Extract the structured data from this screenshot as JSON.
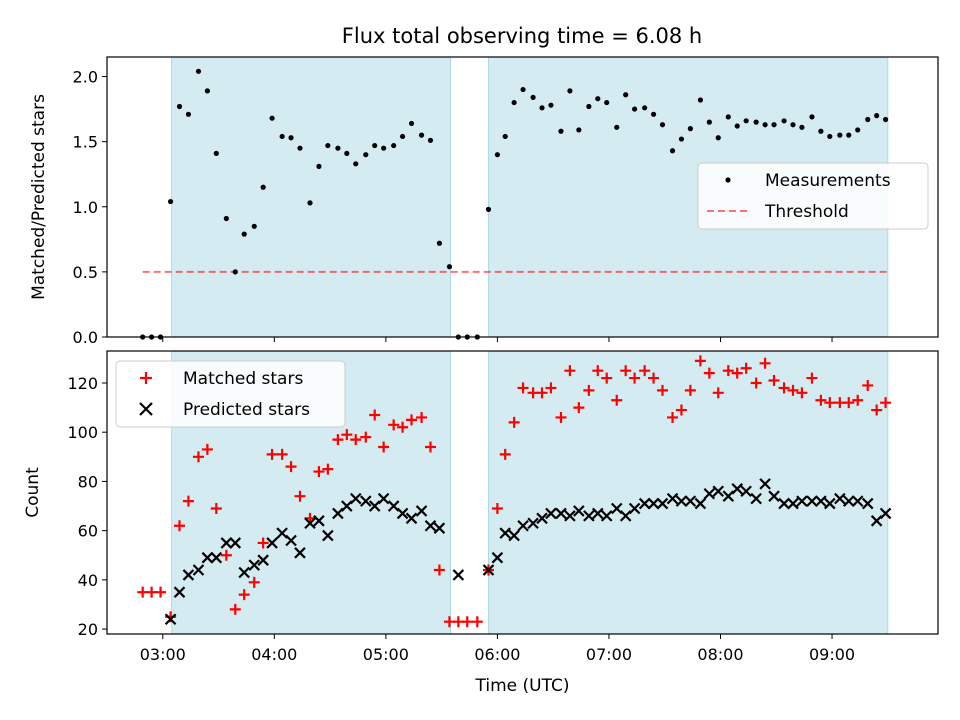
{
  "title": "Flux total observing time = 6.08 h",
  "colors": {
    "shade": "#add8e6",
    "threshold": "#ff0000",
    "matched": "#ff0000",
    "predicted": "#000000",
    "measurement": "#000000"
  },
  "chart_data": [
    {
      "type": "scatter",
      "ylabel": "Matched/Predicted stars",
      "xlim": [
        2.5,
        9.95
      ],
      "ylim": [
        0,
        2.15
      ],
      "yticks": [
        0.0,
        0.5,
        1.0,
        1.5,
        2.0
      ],
      "ytick_labels": [
        "0.0",
        "0.5",
        "1.0",
        "1.5",
        "2.0"
      ],
      "observing_spans": [
        [
          3.08,
          5.58
        ],
        [
          5.92,
          9.5
        ]
      ],
      "threshold": {
        "name": "Threshold",
        "y": 0.5,
        "x_range": [
          2.82,
          9.5
        ]
      },
      "legend": {
        "position": "right",
        "entries": [
          "Measurements",
          "Threshold"
        ]
      },
      "series": [
        {
          "name": "Measurements",
          "marker": "dot",
          "x": [
            2.82,
            2.9,
            2.98,
            3.07,
            3.15,
            3.23,
            3.32,
            3.4,
            3.48,
            3.57,
            3.65,
            3.73,
            3.82,
            3.9,
            3.98,
            4.07,
            4.15,
            4.23,
            4.32,
            4.4,
            4.48,
            4.57,
            4.65,
            4.73,
            4.82,
            4.9,
            4.98,
            5.07,
            5.15,
            5.23,
            5.32,
            5.4,
            5.48,
            5.57,
            5.65,
            5.73,
            5.82,
            5.92,
            6.0,
            6.07,
            6.15,
            6.23,
            6.32,
            6.4,
            6.48,
            6.57,
            6.65,
            6.73,
            6.82,
            6.9,
            6.98,
            7.07,
            7.15,
            7.23,
            7.32,
            7.4,
            7.48,
            7.57,
            7.65,
            7.73,
            7.82,
            7.9,
            7.98,
            8.07,
            8.15,
            8.23,
            8.32,
            8.4,
            8.48,
            8.57,
            8.65,
            8.73,
            8.82,
            8.9,
            8.98,
            9.07,
            9.15,
            9.23,
            9.32,
            9.4,
            9.48
          ],
          "y": [
            0,
            0,
            0,
            1.04,
            1.77,
            1.71,
            2.04,
            1.89,
            1.41,
            0.91,
            0.5,
            0.79,
            0.85,
            1.15,
            1.68,
            1.54,
            1.53,
            1.45,
            1.03,
            1.31,
            1.47,
            1.45,
            1.41,
            1.33,
            1.4,
            1.47,
            1.45,
            1.47,
            1.54,
            1.64,
            1.55,
            1.51,
            0.72,
            0.54,
            0,
            0,
            0,
            0.98,
            1.4,
            1.54,
            1.8,
            1.9,
            1.84,
            1.76,
            1.78,
            1.58,
            1.89,
            1.59,
            1.77,
            1.83,
            1.8,
            1.61,
            1.86,
            1.75,
            1.76,
            1.71,
            1.63,
            1.43,
            1.52,
            1.6,
            1.82,
            1.65,
            1.53,
            1.69,
            1.62,
            1.66,
            1.65,
            1.63,
            1.63,
            1.66,
            1.63,
            1.61,
            1.69,
            1.58,
            1.54,
            1.55,
            1.55,
            1.59,
            1.67,
            1.7,
            1.67
          ]
        }
      ]
    },
    {
      "type": "scatter",
      "xlabel": "Time (UTC)",
      "ylabel": "Count",
      "xlim": [
        2.5,
        9.95
      ],
      "ylim": [
        18,
        133
      ],
      "yticks": [
        20,
        40,
        60,
        80,
        100,
        120
      ],
      "ytick_labels": [
        "20",
        "40",
        "60",
        "80",
        "100",
        "120"
      ],
      "xticks": [
        3,
        4,
        5,
        6,
        7,
        8,
        9
      ],
      "xtick_labels": [
        "03:00",
        "04:00",
        "05:00",
        "06:00",
        "07:00",
        "08:00",
        "09:00"
      ],
      "observing_spans": [
        [
          3.08,
          5.58
        ],
        [
          5.92,
          9.5
        ]
      ],
      "legend": {
        "position": "top-left",
        "entries": [
          "Matched stars",
          "Predicted stars"
        ]
      },
      "series": [
        {
          "name": "Matched stars",
          "marker": "plus",
          "x": [
            2.82,
            2.9,
            2.98,
            3.07,
            3.15,
            3.23,
            3.32,
            3.4,
            3.48,
            3.57,
            3.65,
            3.73,
            3.82,
            3.9,
            3.98,
            4.07,
            4.15,
            4.23,
            4.32,
            4.4,
            4.48,
            4.57,
            4.65,
            4.73,
            4.82,
            4.9,
            4.98,
            5.07,
            5.15,
            5.23,
            5.32,
            5.4,
            5.48,
            5.57,
            5.65,
            5.73,
            5.82,
            5.92,
            6.0,
            6.07,
            6.15,
            6.23,
            6.32,
            6.4,
            6.48,
            6.57,
            6.65,
            6.73,
            6.82,
            6.9,
            6.98,
            7.07,
            7.15,
            7.23,
            7.32,
            7.4,
            7.48,
            7.57,
            7.65,
            7.73,
            7.82,
            7.9,
            7.98,
            8.07,
            8.15,
            8.23,
            8.32,
            8.4,
            8.48,
            8.57,
            8.65,
            8.73,
            8.82,
            8.9,
            8.98,
            9.07,
            9.15,
            9.23,
            9.32,
            9.4,
            9.48
          ],
          "y": [
            35,
            35,
            35,
            25,
            62,
            72,
            90,
            93,
            69,
            50,
            28,
            34,
            39,
            55,
            91,
            91,
            86,
            74,
            65,
            84,
            85,
            97,
            99,
            97,
            98,
            107,
            94,
            103,
            102,
            105,
            106,
            94,
            44,
            23,
            23,
            23,
            23,
            44,
            69,
            91,
            104,
            118,
            116,
            116,
            118,
            106,
            125,
            110,
            117,
            125,
            122,
            113,
            125,
            122,
            125,
            122,
            117,
            106,
            109,
            117,
            129,
            124,
            116,
            125,
            124,
            126,
            120,
            128,
            121,
            118,
            117,
            116,
            122,
            113,
            112,
            112,
            112,
            113,
            119,
            109,
            112
          ]
        },
        {
          "name": "Predicted stars",
          "marker": "x",
          "x": [
            3.07,
            3.15,
            3.23,
            3.32,
            3.4,
            3.48,
            3.57,
            3.65,
            3.73,
            3.82,
            3.9,
            3.98,
            4.07,
            4.15,
            4.23,
            4.32,
            4.4,
            4.48,
            4.57,
            4.65,
            4.73,
            4.82,
            4.9,
            4.98,
            5.07,
            5.15,
            5.23,
            5.32,
            5.4,
            5.48,
            5.65,
            5.92,
            6.0,
            6.07,
            6.15,
            6.23,
            6.32,
            6.4,
            6.48,
            6.57,
            6.65,
            6.73,
            6.82,
            6.9,
            6.98,
            7.07,
            7.15,
            7.23,
            7.32,
            7.4,
            7.48,
            7.57,
            7.65,
            7.73,
            7.82,
            7.9,
            7.98,
            8.07,
            8.15,
            8.23,
            8.32,
            8.4,
            8.48,
            8.57,
            8.65,
            8.73,
            8.82,
            8.9,
            8.98,
            9.07,
            9.15,
            9.23,
            9.32,
            9.4,
            9.48
          ],
          "y": [
            24,
            35,
            42,
            44,
            49,
            49,
            55,
            55,
            43,
            46,
            48,
            55,
            59,
            56,
            51,
            63,
            64,
            58,
            67,
            70,
            73,
            72,
            70,
            73,
            70,
            67,
            65,
            68,
            62,
            61,
            42,
            44,
            49,
            59,
            58,
            62,
            63,
            65,
            67,
            67,
            66,
            68,
            66,
            67,
            66,
            69,
            66,
            69,
            71,
            71,
            71,
            73,
            72,
            72,
            71,
            75,
            76,
            74,
            77,
            76,
            73,
            79,
            74,
            71,
            71,
            72,
            72,
            72,
            71,
            73,
            72,
            72,
            71,
            64,
            67
          ]
        }
      ]
    }
  ]
}
